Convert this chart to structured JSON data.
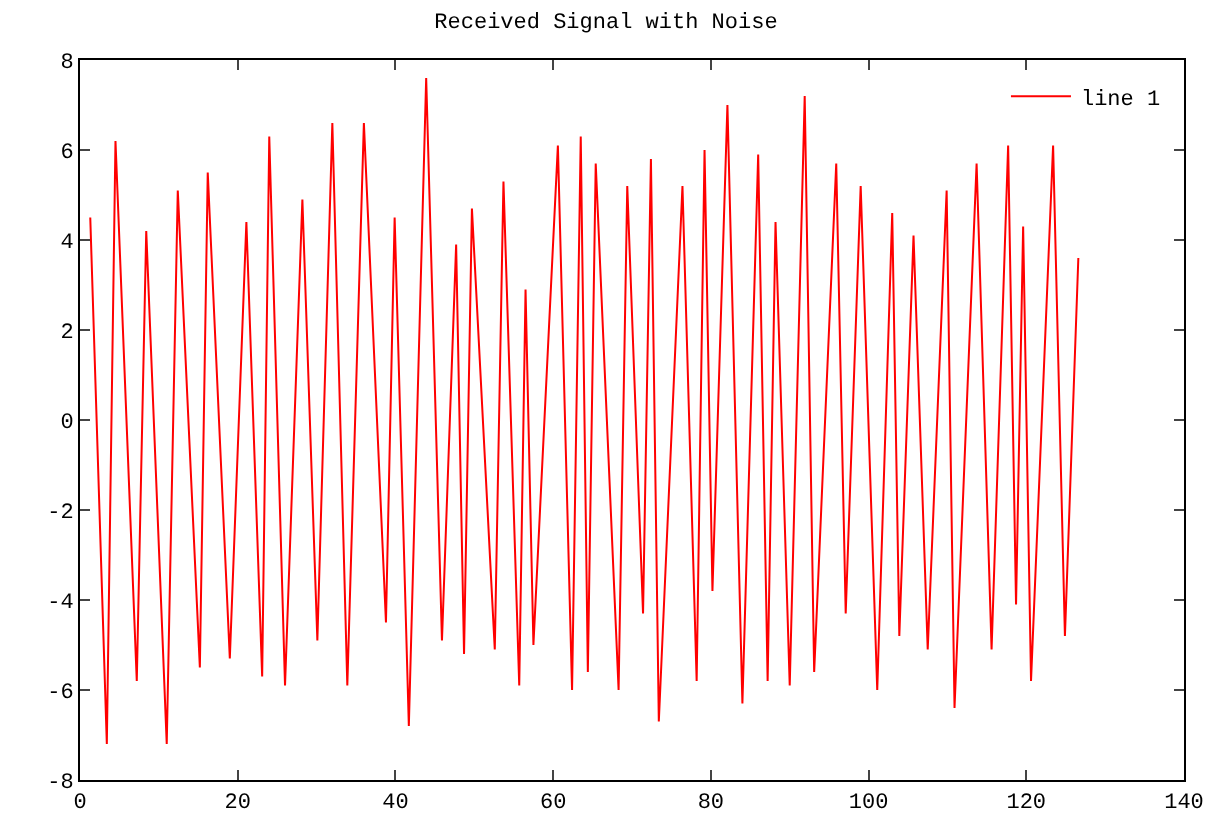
{
  "chart_data": {
    "type": "line",
    "title": "Received Signal with Noise",
    "series": [
      {
        "name": "line 1",
        "color": "#ff0000",
        "x": [
          1.3,
          3.4,
          4.5,
          7.2,
          8.4,
          11,
          12.4,
          15.2,
          16.2,
          19,
          21.1,
          23.1,
          24,
          26,
          28.2,
          30.1,
          32,
          33.9,
          36,
          38.8,
          39.9,
          41.7,
          43.9,
          45.9,
          47.7,
          48.7,
          49.7,
          52.6,
          53.7,
          55.7,
          56.5,
          57.5,
          60.6,
          62.4,
          63.5,
          64.4,
          65.4,
          68.3,
          69.4,
          71.4,
          72.4,
          73.4,
          76.4,
          78.2,
          79.2,
          80.2,
          82.1,
          84,
          86,
          87.2,
          88.2,
          90,
          91.9,
          93.1,
          95.9,
          97.1,
          99,
          101.1,
          103,
          103.9,
          105.7,
          107.5,
          109.9,
          110.9,
          113.7,
          115.6,
          117.7,
          118.7,
          119.6,
          120.6,
          123.4,
          124.9,
          126.6
        ],
        "values": [
          4.5,
          -7.2,
          6.2,
          -5.8,
          4.2,
          -7.2,
          5.1,
          -5.5,
          5.5,
          -5.3,
          4.4,
          -5.7,
          6.3,
          -5.9,
          4.9,
          -4.9,
          6.6,
          -5.9,
          6.6,
          -4.5,
          4.5,
          -6.8,
          7.6,
          -4.9,
          3.9,
          -5.2,
          4.7,
          -5.1,
          5.3,
          -5.9,
          2.9,
          -5,
          6.1,
          -6,
          6.3,
          -5.6,
          5.7,
          -6,
          5.2,
          -4.3,
          5.8,
          -6.7,
          5.2,
          -5.8,
          6,
          -3.8,
          7,
          -6.3,
          5.9,
          -5.8,
          4.4,
          -5.9,
          7.2,
          -5.6,
          5.7,
          -4.3,
          5.2,
          -6,
          4.6,
          -4.8,
          4.1,
          -5.1,
          5.1,
          -6.4,
          5.7,
          -5.1,
          6.1,
          -4.1,
          4.3,
          -5.8,
          6.1,
          -4.8,
          3.6
        ]
      }
    ],
    "xlim": [
      0,
      140
    ],
    "xticks": [
      0,
      20,
      40,
      60,
      80,
      100,
      120,
      140
    ],
    "ylim": [
      -8,
      8
    ],
    "yticks": [
      -8,
      -6,
      -4,
      -2,
      0,
      2,
      4,
      6,
      8
    ],
    "grid": false,
    "legend": "top right",
    "marker": "none",
    "line_style": "solid"
  }
}
